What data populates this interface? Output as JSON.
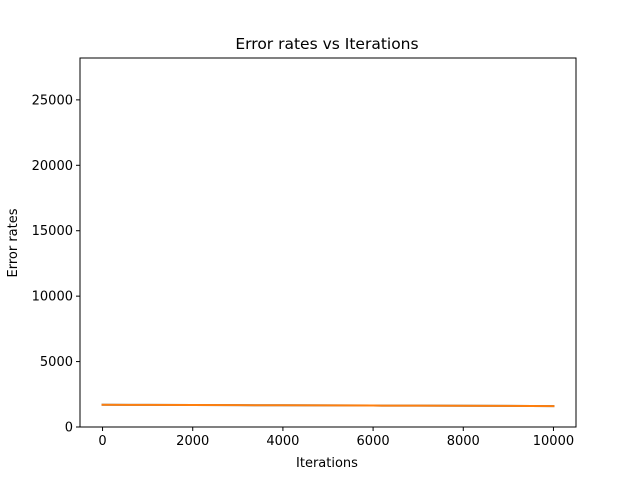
{
  "chart_data": {
    "type": "line",
    "title": "Error rates vs Iterations",
    "xlabel": "Iterations",
    "ylabel": "Error rates",
    "xlim": [
      -500,
      10500
    ],
    "ylim": [
      0,
      28200
    ],
    "xticks": [
      0,
      2000,
      4000,
      6000,
      8000,
      10000
    ],
    "yticks": [
      0,
      5000,
      10000,
      15000,
      20000,
      25000
    ],
    "grid": false,
    "series": [
      {
        "color": "#1f77b4",
        "x": [
          0,
          1000,
          2000,
          3000,
          4000,
          5000,
          6000,
          7000,
          8000,
          9000,
          10000
        ],
        "y": [
          1700,
          1690,
          1680,
          1670,
          1660,
          1650,
          1640,
          1630,
          1620,
          1610,
          1600
        ]
      },
      {
        "color": "#ff7f0e",
        "x": [
          0,
          1000,
          2000,
          3000,
          4000,
          5000,
          6000,
          7000,
          8000,
          9000,
          10000
        ],
        "y": [
          1700,
          1690,
          1680,
          1670,
          1660,
          1650,
          1640,
          1630,
          1620,
          1610,
          1600
        ]
      }
    ]
  }
}
